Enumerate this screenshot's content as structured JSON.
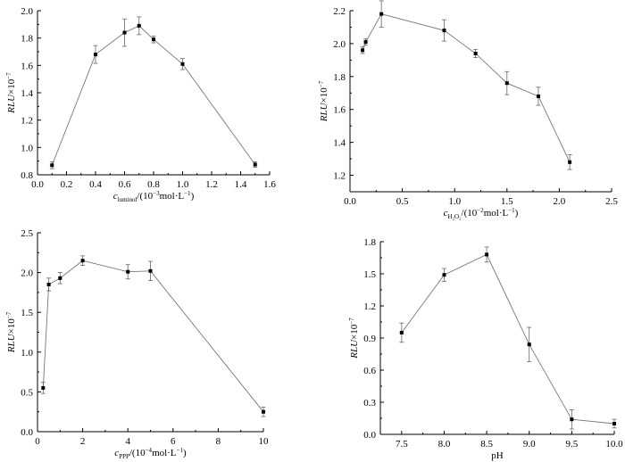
{
  "chart_data": [
    {
      "type": "line",
      "xlabel": {
        "var": "c",
        "sub": "luminol",
        "rest": "/(10",
        "exp": "−3",
        "unit": "mol·L",
        "unit_exp": "−1",
        "close": ")"
      },
      "ylabel": {
        "var": "RLU",
        "rest": "×10",
        "exp": "−7"
      },
      "xlim": [
        0.0,
        1.6
      ],
      "ylim": [
        0.8,
        2.0
      ],
      "xticks": [
        "0.0",
        "0.2",
        "0.4",
        "0.6",
        "0.8",
        "1.0",
        "1.2",
        "1.4",
        "1.6"
      ],
      "yticks": [
        "0.8",
        "1.0",
        "1.2",
        "1.4",
        "1.6",
        "1.8",
        "2.0"
      ],
      "x": [
        0.1,
        0.4,
        0.6,
        0.7,
        0.8,
        1.0,
        1.5
      ],
      "y": [
        0.87,
        1.68,
        1.84,
        1.89,
        1.79,
        1.61,
        0.875
      ],
      "err": [
        0.025,
        0.065,
        0.1,
        0.065,
        0.025,
        0.04,
        0.02
      ]
    },
    {
      "type": "line",
      "xlabel": {
        "var": "c",
        "sub": "H₂O₂",
        "rest": "/(10",
        "exp": "−2",
        "unit": "mol·L",
        "unit_exp": "−1",
        "close": ")"
      },
      "ylabel": {
        "var": "RLU",
        "rest": "×10",
        "exp": "−7"
      },
      "xlim": [
        0.0,
        2.5
      ],
      "ylim": [
        1.1,
        2.2
      ],
      "xticks": [
        "0.0",
        "0.5",
        "1.0",
        "1.5",
        "2.0",
        "2.5"
      ],
      "yticks": [
        "1.2",
        "1.4",
        "1.6",
        "1.8",
        "2.0",
        "2.2"
      ],
      "x": [
        0.12,
        0.15,
        0.3,
        0.9,
        1.2,
        1.5,
        1.8,
        2.1
      ],
      "y": [
        1.96,
        2.01,
        2.18,
        2.08,
        1.94,
        1.76,
        1.68,
        1.28
      ],
      "err": [
        0.02,
        0.02,
        0.08,
        0.065,
        0.025,
        0.07,
        0.055,
        0.045
      ]
    },
    {
      "type": "line",
      "xlabel": {
        "var": "c",
        "sub": "PPP",
        "rest": "/(10",
        "exp": "−4",
        "unit": "mol·L",
        "unit_exp": "−1",
        "close": ")"
      },
      "ylabel": {
        "var": "RLU",
        "rest": "×10",
        "exp": "−7"
      },
      "xlim": [
        0,
        10
      ],
      "ylim": [
        0.0,
        2.5
      ],
      "xticks": [
        "0",
        "2",
        "4",
        "6",
        "8",
        "10"
      ],
      "yticks": [
        "0.0",
        "0.5",
        "1.0",
        "1.5",
        "2.0",
        "2.5"
      ],
      "x": [
        0.25,
        0.5,
        1,
        2,
        4,
        5,
        10
      ],
      "y": [
        0.55,
        1.85,
        1.93,
        2.15,
        2.01,
        2.02,
        0.25
      ],
      "err": [
        0.07,
        0.08,
        0.07,
        0.06,
        0.09,
        0.12,
        0.06
      ]
    },
    {
      "type": "line",
      "xlabel": {
        "var": "",
        "sub": "",
        "rest": "pH",
        "exp": "",
        "unit": "",
        "unit_exp": "",
        "close": ""
      },
      "ylabel": {
        "var": "RLU",
        "rest": "×10",
        "exp": "−7"
      },
      "xlim": [
        7.25,
        10.0
      ],
      "ylim": [
        0.0,
        1.8
      ],
      "xticks": [
        "7.5",
        "8.0",
        "8.5",
        "9.0",
        "9.5",
        "10.0"
      ],
      "yticks": [
        "0.0",
        "0.3",
        "0.6",
        "0.9",
        "1.2",
        "1.5",
        "1.8"
      ],
      "x": [
        7.5,
        8.0,
        8.5,
        9.0,
        9.5,
        10.0
      ],
      "y": [
        0.95,
        1.49,
        1.68,
        0.84,
        0.14,
        0.1
      ],
      "err": [
        0.09,
        0.06,
        0.07,
        0.16,
        0.09,
        0.04
      ]
    }
  ]
}
